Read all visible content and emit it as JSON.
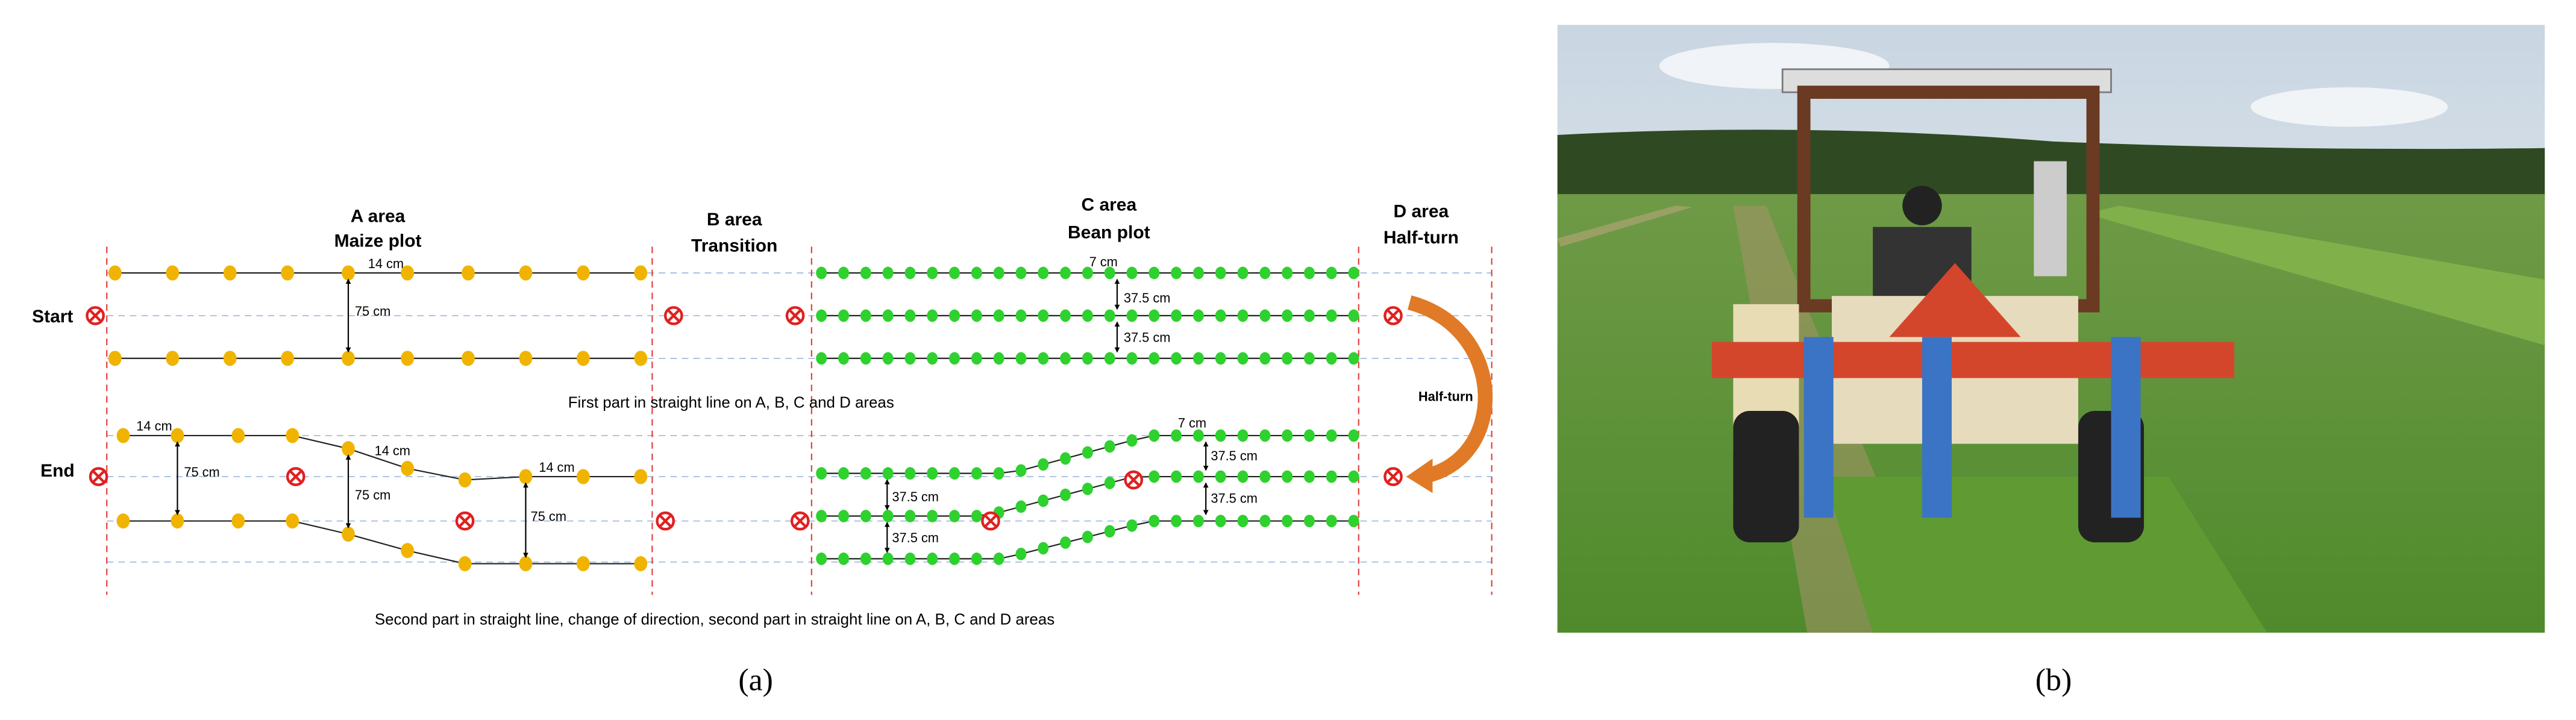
{
  "panel_a": {
    "areas": [
      {
        "name": "A area",
        "desc": "Maize plot"
      },
      {
        "name": "B area",
        "desc": "Transition"
      },
      {
        "name": "C area",
        "desc": "Bean plot"
      },
      {
        "name": "D area",
        "desc": "Half-turn"
      }
    ],
    "row_labels": [
      "Start",
      "End"
    ],
    "measurements": [
      "14 cm",
      "75 cm",
      "7 cm",
      "37.5 cm",
      "37.5 cm",
      "14 cm",
      "75 cm",
      "14 cm",
      "75 cm",
      "14 cm",
      "75 cm",
      "7 cm",
      "37.5 cm",
      "37.5 cm",
      "37.5 cm",
      "37.5 cm"
    ],
    "half_turn_label": "Half-turn",
    "captions": [
      "First part in straight line on A, B, C and D areas",
      "Second part in straight line, change of direction, second part in straight line on A, B, C and D areas"
    ],
    "label": "(a)"
  },
  "panel_b": {
    "label": "(b)"
  }
}
